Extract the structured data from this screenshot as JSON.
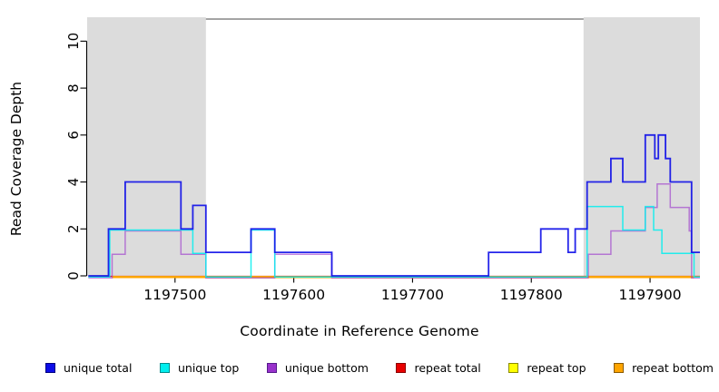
{
  "chart_data": {
    "type": "line",
    "subtype": "step-coverage-plot",
    "title": "",
    "xlabel": "Coordinate in Reference Genome",
    "ylabel": "Read Coverage Depth",
    "xlim": [
      1197426,
      1197942
    ],
    "ylim": [
      0,
      11
    ],
    "x_ticks": [
      1197500,
      1197600,
      1197700,
      1197800,
      1197900
    ],
    "y_ticks": [
      0,
      2,
      4,
      6,
      8,
      10
    ],
    "grid": false,
    "legend_position": "bottom",
    "background_color": "#ffffff",
    "shaded_region_color": "#dcdcdc",
    "shaded_regions": [
      {
        "x0": 1197426,
        "x1": 1197526
      },
      {
        "x0": 1197844,
        "x1": 1197942
      }
    ],
    "series": [
      {
        "name": "unique total",
        "color": "#0d0de8",
        "swatch_border": "#000080",
        "end": 1197942,
        "steps": [
          [
            1197427,
            0
          ],
          [
            1197444,
            2
          ],
          [
            1197458,
            4
          ],
          [
            1197505,
            2
          ],
          [
            1197515,
            3
          ],
          [
            1197526,
            1
          ],
          [
            1197564,
            2
          ],
          [
            1197584,
            1
          ],
          [
            1197632,
            0
          ],
          [
            1197764,
            1
          ],
          [
            1197808,
            2
          ],
          [
            1197831,
            1
          ],
          [
            1197837,
            2
          ],
          [
            1197847,
            4
          ],
          [
            1197867,
            5
          ],
          [
            1197877,
            4
          ],
          [
            1197896,
            6
          ],
          [
            1197904,
            5
          ],
          [
            1197907,
            6
          ],
          [
            1197913,
            5
          ],
          [
            1197917,
            4
          ],
          [
            1197935,
            1
          ]
        ]
      },
      {
        "name": "unique top",
        "color": "#00eeee",
        "swatch_border": "#008b8b",
        "end": 1197942,
        "steps": [
          [
            1197427,
            0
          ],
          [
            1197445,
            2
          ],
          [
            1197515,
            1
          ],
          [
            1197526,
            0
          ],
          [
            1197564,
            2
          ],
          [
            1197584,
            0
          ],
          [
            1197847,
            3
          ],
          [
            1197877,
            2
          ],
          [
            1197896,
            3
          ],
          [
            1197903,
            2
          ],
          [
            1197910,
            1
          ],
          [
            1197937,
            0
          ]
        ]
      },
      {
        "name": "unique bottom",
        "color": "#9932cc",
        "swatch_border": "#551a8b",
        "end": 1197942,
        "steps": [
          [
            1197427,
            0
          ],
          [
            1197447,
            1
          ],
          [
            1197458,
            2
          ],
          [
            1197505,
            1
          ],
          [
            1197526,
            0
          ],
          [
            1197584,
            1
          ],
          [
            1197632,
            0
          ],
          [
            1197848,
            1
          ],
          [
            1197867,
            2
          ],
          [
            1197896,
            3
          ],
          [
            1197906,
            4
          ],
          [
            1197917,
            3
          ],
          [
            1197933,
            2
          ],
          [
            1197935,
            0
          ]
        ]
      },
      {
        "name": "repeat total",
        "color": "#e80000",
        "swatch_border": "#8b0000",
        "end": 1197942,
        "steps": [
          [
            1197427,
            0
          ]
        ]
      },
      {
        "name": "repeat top",
        "color": "#ffff00",
        "swatch_border": "#8b8b00",
        "end": 1197942,
        "steps": [
          [
            1197447,
            0
          ]
        ]
      },
      {
        "name": "repeat bottom",
        "color": "#ffa500",
        "swatch_border": "#8b5a00",
        "end": 1197937,
        "steps": [
          [
            1197447,
            0
          ]
        ]
      }
    ]
  }
}
